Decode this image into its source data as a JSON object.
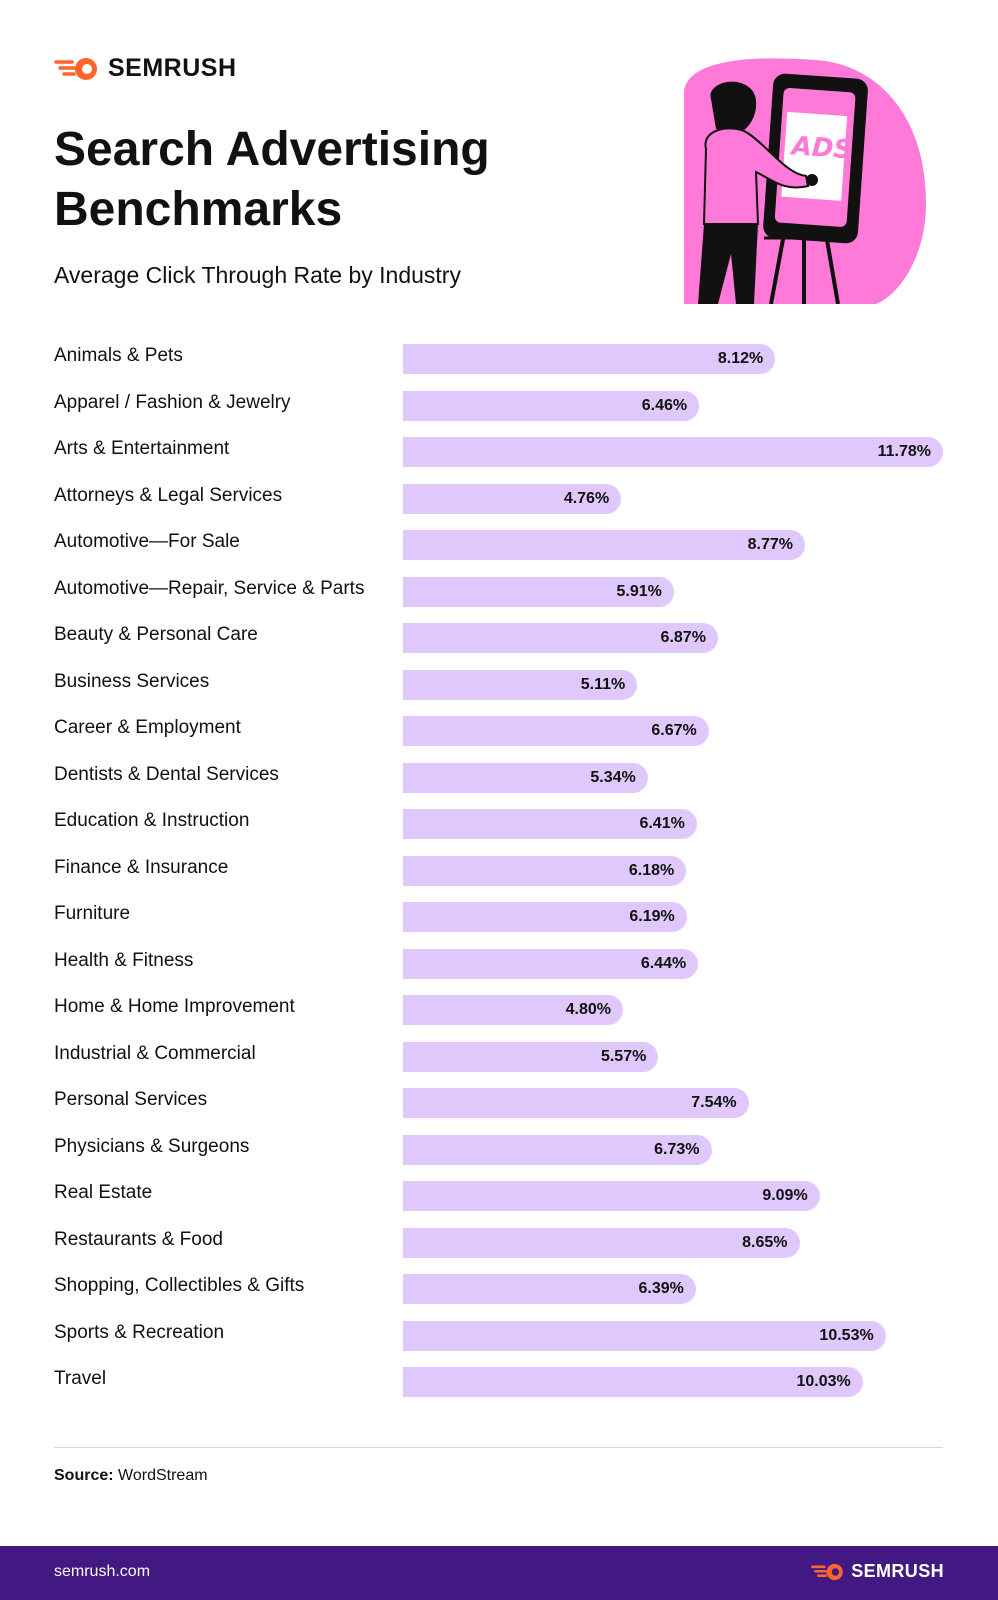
{
  "brand": {
    "name": "SEMRUSH",
    "url": "semrush.com"
  },
  "colors": {
    "bar": "#e0c8fd",
    "accent": "#ff642d",
    "footer": "#421983",
    "illustration_pink": "#ff7ad8"
  },
  "illustration": {
    "ads_text": "ADS"
  },
  "chart_data": {
    "type": "bar",
    "orientation": "horizontal",
    "title": "Search Advertising Benchmarks",
    "subtitle": "Average Click Through Rate by Industry",
    "value_suffix": "%",
    "xlim": [
      0,
      11.78
    ],
    "grid": false,
    "categories": [
      "Animals & Pets",
      "Apparel / Fashion & Jewelry",
      "Arts & Entertainment",
      "Attorneys & Legal Services",
      "Automotive—For Sale",
      "Automotive—Repair, Service & Parts",
      "Beauty & Personal Care",
      "Business Services",
      "Career & Employment",
      "Dentists & Dental Services",
      "Education & Instruction",
      "Finance & Insurance",
      "Furniture",
      "Health & Fitness",
      "Home & Home Improvement",
      "Industrial & Commercial",
      "Personal Services",
      "Physicians & Surgeons",
      "Real Estate",
      "Restaurants & Food",
      "Shopping, Collectibles & Gifts",
      "Sports & Recreation",
      "Travel"
    ],
    "values": [
      8.12,
      6.46,
      11.78,
      4.76,
      8.77,
      5.91,
      6.87,
      5.11,
      6.67,
      5.34,
      6.41,
      6.18,
      6.19,
      6.44,
      4.8,
      5.57,
      7.54,
      6.73,
      9.09,
      8.65,
      6.39,
      10.53,
      10.03
    ],
    "value_labels": [
      "8.12%",
      "6.46%",
      "11.78%",
      "4.76%",
      "8.77%",
      "5.91%",
      "6.87%",
      "5.11%",
      "6.67%",
      "5.34%",
      "6.41%",
      "6.18%",
      "6.19%",
      "6.44%",
      "4.80%",
      "5.57%",
      "7.54%",
      "6.73%",
      "9.09%",
      "8.65%",
      "6.39%",
      "10.53%",
      "10.03%"
    ]
  },
  "source": {
    "label": "Source:",
    "value": "WordStream"
  }
}
